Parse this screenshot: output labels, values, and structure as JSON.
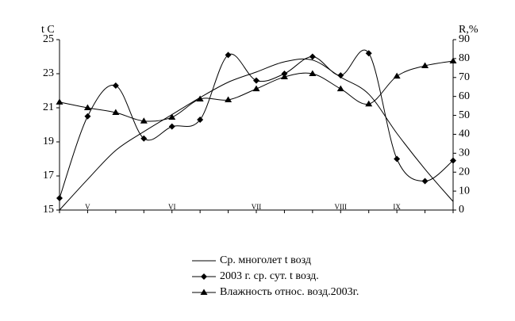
{
  "chart_data": {
    "type": "line",
    "y_label": "t C",
    "y2_label": "R,%",
    "categories": [
      null,
      "V",
      null,
      null,
      "VI",
      null,
      null,
      "VII",
      null,
      null,
      "VIII",
      null,
      "IX",
      null,
      null
    ],
    "ylim": [
      15,
      25
    ],
    "yticks": [
      15,
      17,
      19,
      21,
      23,
      25
    ],
    "y2lim": [
      0,
      90
    ],
    "y2ticks": [
      0,
      10,
      20,
      30,
      40,
      50,
      60,
      70,
      80,
      90
    ],
    "series": [
      {
        "name": "Ср. многолет t возд",
        "color": "#000000",
        "marker": "none",
        "values": [
          15.0,
          16.8,
          18.5,
          19.6,
          20.6,
          21.6,
          22.5,
          23.1,
          23.7,
          23.8,
          22.8,
          21.8,
          19.5,
          17.4,
          15.5
        ]
      },
      {
        "name": "2003 г. ср. сут. t возд.",
        "color": "#000000",
        "marker": "diamond",
        "values": [
          15.7,
          20.5,
          22.3,
          19.2,
          19.9,
          20.3,
          24.1,
          22.6,
          23.0,
          24.0,
          22.9,
          24.2,
          18.0,
          16.7,
          17.9
        ]
      },
      {
        "name": "Влажность относ. возд.2003г.",
        "color": "#000000",
        "marker": "triangle",
        "axis": "y2",
        "values": [
          57,
          54,
          51.5,
          47,
          49,
          58.6,
          58.2,
          64,
          70.3,
          72,
          64,
          56,
          70.7,
          76.2,
          78.7
        ]
      }
    ]
  }
}
